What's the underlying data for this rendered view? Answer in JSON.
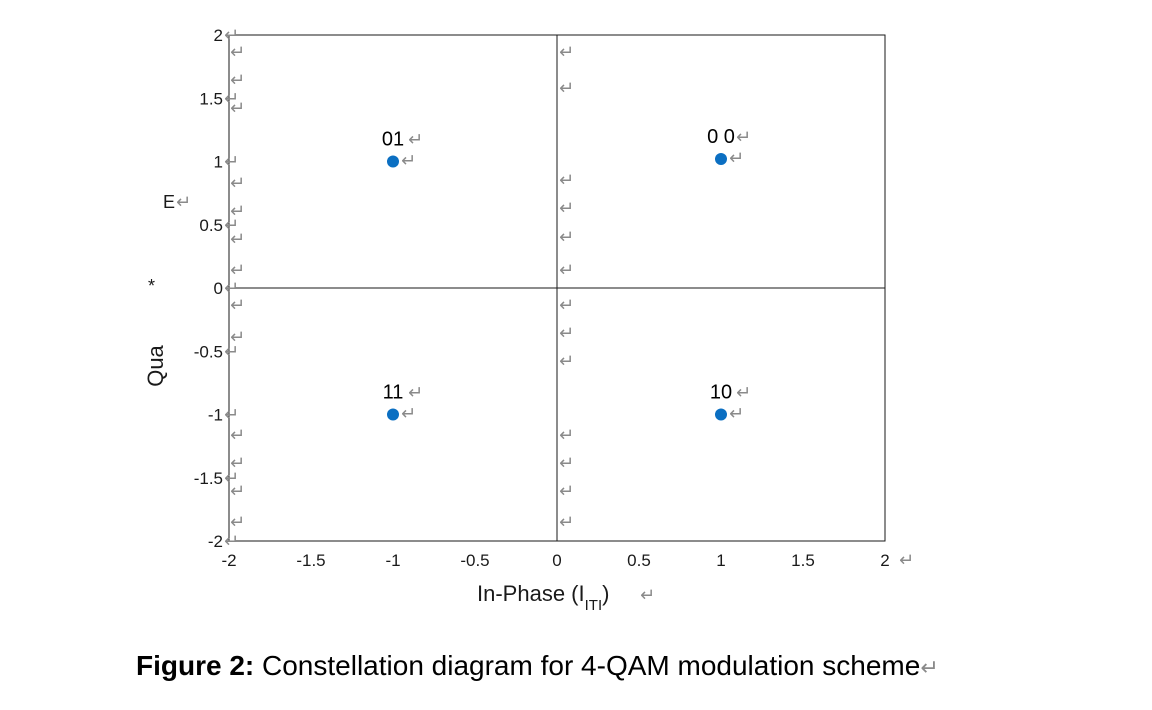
{
  "chart_data": {
    "type": "scatter",
    "title": "",
    "xlabel": "In-Phase (I",
    "xlabel_sub": "ITI",
    "xlabel_close": ")",
    "ylabel": "Qua",
    "ylabel_stray": "E",
    "ylabel_star": "*",
    "xlim": [
      -2,
      2
    ],
    "ylim": [
      -2,
      2
    ],
    "x_ticks": [
      -2,
      -1.5,
      -1,
      -0.5,
      0,
      0.5,
      1,
      1.5,
      2
    ],
    "x_tick_labels": [
      "-2",
      "-1.5",
      "-1",
      "-0.5",
      "0",
      "0.5",
      "1",
      "1.5",
      "2"
    ],
    "y_ticks": [
      2,
      1.5,
      1,
      0.5,
      0,
      -0.5,
      -1,
      -1.5,
      -2
    ],
    "y_tick_labels": [
      "2",
      "1.5",
      "1",
      "0.5",
      "0",
      "-0.5",
      "-1",
      "-1.5",
      "-2"
    ],
    "grid": false,
    "marker_color": "#0b6fc2",
    "points": [
      {
        "x": -1,
        "y": 1,
        "label": "01"
      },
      {
        "x": 1,
        "y": 1.02,
        "label": "0 0"
      },
      {
        "x": -1,
        "y": -1,
        "label": "11"
      },
      {
        "x": 1,
        "y": -1,
        "label": "10"
      }
    ]
  },
  "caption": {
    "bold": "Figure 2:",
    "text": " Constellation diagram for 4-QAM modulation scheme"
  },
  "return_mark": "↵"
}
